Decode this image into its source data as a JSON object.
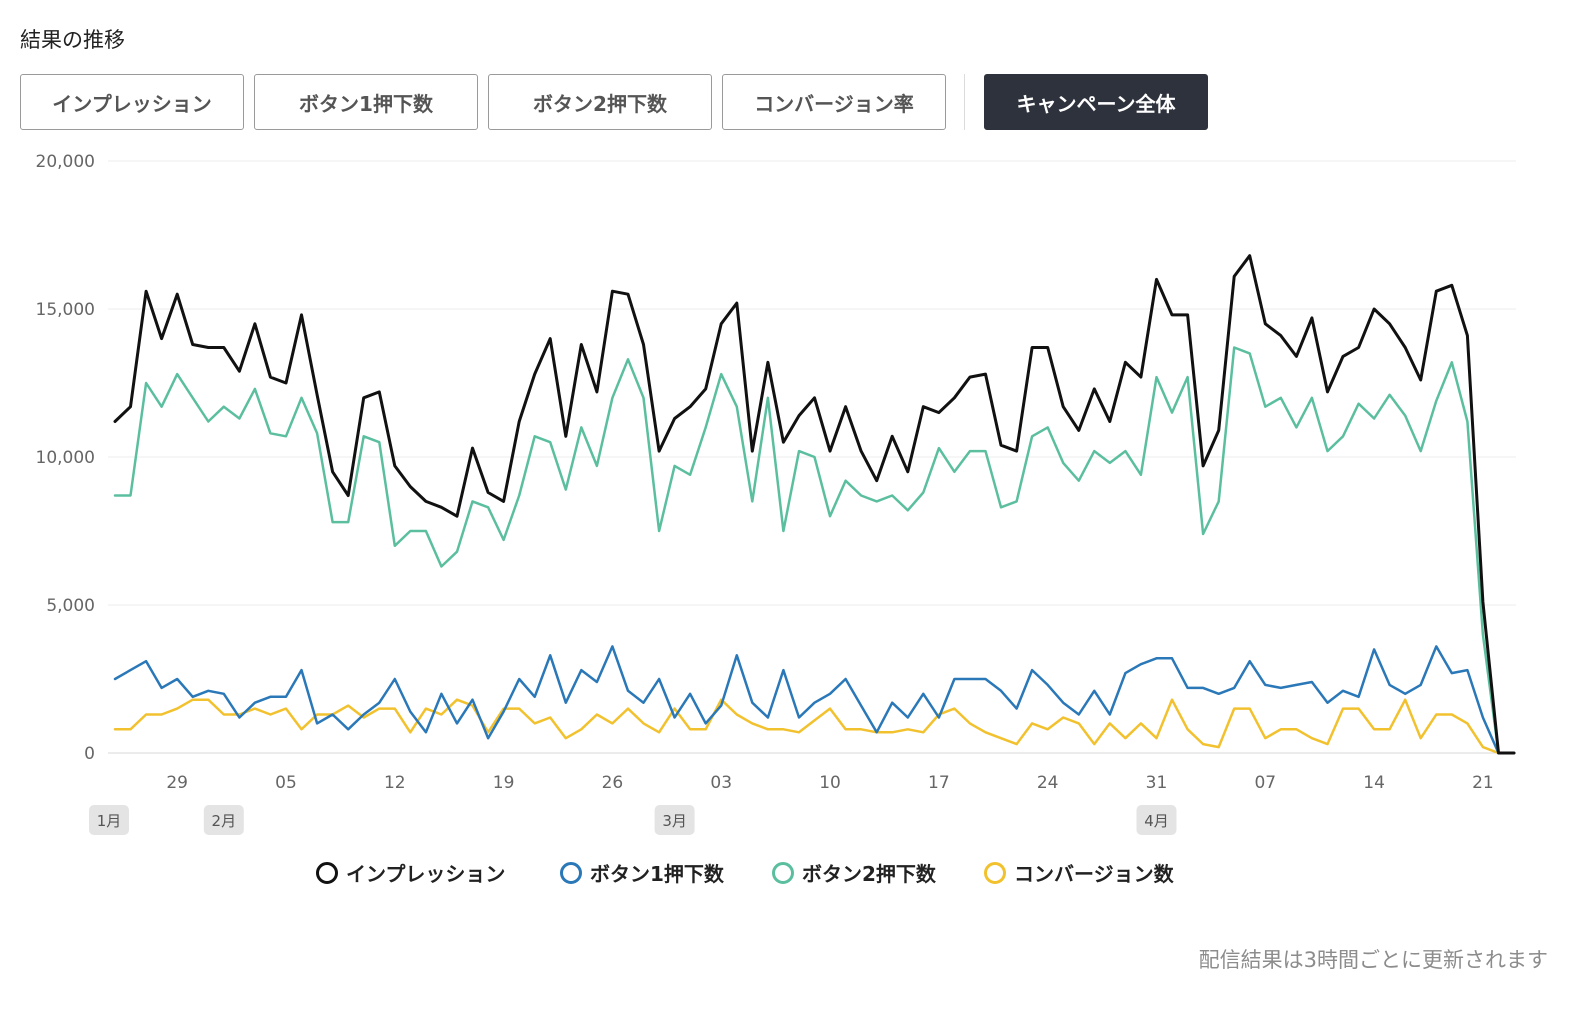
{
  "title": "結果の推移",
  "tabs": [
    {
      "label": "インプレッション",
      "active": false
    },
    {
      "label": "ボタン1押下数",
      "active": false
    },
    {
      "label": "ボタン2押下数",
      "active": false
    },
    {
      "label": "コンバージョン率",
      "active": false
    },
    {
      "label": "キャンペーン全体",
      "active": true
    }
  ],
  "footer_note": "配信結果は3時間ごとに更新されます",
  "chart_data": {
    "type": "line",
    "ylim": [
      0,
      20000
    ],
    "y_ticks": [
      "0",
      "5,000",
      "10,000",
      "15,000",
      "20,000"
    ],
    "y_tick_values": [
      0,
      5000,
      10000,
      15000,
      20000
    ],
    "x_tick_labels": [
      {
        "label": "29",
        "index": 4
      },
      {
        "label": "05",
        "index": 11
      },
      {
        "label": "12",
        "index": 18
      },
      {
        "label": "19",
        "index": 25
      },
      {
        "label": "26",
        "index": 32
      },
      {
        "label": "03",
        "index": 39
      },
      {
        "label": "10",
        "index": 46
      },
      {
        "label": "17",
        "index": 53
      },
      {
        "label": "24",
        "index": 60
      },
      {
        "label": "31",
        "index": 67
      },
      {
        "label": "07",
        "index": 74
      },
      {
        "label": "14",
        "index": 81
      },
      {
        "label": "21",
        "index": 88
      }
    ],
    "month_badges": [
      {
        "label": "1月",
        "index": 0
      },
      {
        "label": "2月",
        "index": 7
      },
      {
        "label": "3月",
        "index": 36
      },
      {
        "label": "4月",
        "index": 67
      }
    ],
    "grid": true,
    "legend_position": "bottom",
    "series": [
      {
        "name": "インプレッション",
        "color": "#111111",
        "values": [
          11200,
          11700,
          15600,
          14000,
          15500,
          13800,
          13700,
          13700,
          12900,
          14500,
          12700,
          12500,
          14800,
          12100,
          9500,
          8700,
          12000,
          12200,
          9700,
          9000,
          8500,
          8300,
          8000,
          10300,
          8800,
          8500,
          11200,
          12800,
          14000,
          10700,
          13800,
          12200,
          15600,
          15500,
          13800,
          10200,
          11300,
          11700,
          12300,
          14500,
          15200,
          10200,
          13200,
          10500,
          11400,
          12000,
          10200,
          11700,
          10200,
          9200,
          10700,
          9500,
          11700,
          11500,
          12000,
          12700,
          12800,
          10400,
          10200,
          13700,
          13700,
          11700,
          10900,
          12300,
          11200,
          13200,
          12700,
          16000,
          14800,
          14800,
          9700,
          10900,
          16100,
          16800,
          14500,
          14100,
          13400,
          14700,
          12200,
          13400,
          13700,
          15000,
          14500,
          13700,
          12600,
          15600,
          15800,
          14100,
          5100,
          0,
          0
        ]
      },
      {
        "name": "ボタン1押下数",
        "color": "#2a78b8",
        "values": [
          2500,
          2800,
          3100,
          2200,
          2500,
          1900,
          2100,
          2000,
          1200,
          1700,
          1900,
          1900,
          2800,
          1000,
          1300,
          800,
          1300,
          1700,
          2500,
          1400,
          700,
          2000,
          1000,
          1800,
          500,
          1400,
          2500,
          1900,
          3300,
          1700,
          2800,
          2400,
          3600,
          2100,
          1700,
          2500,
          1200,
          2000,
          1000,
          1600,
          3300,
          1700,
          1200,
          2800,
          1200,
          1700,
          2000,
          2500,
          1600,
          700,
          1700,
          1200,
          2000,
          1200,
          2500,
          2500,
          2500,
          2100,
          1500,
          2800,
          2300,
          1700,
          1300,
          2100,
          1300,
          2700,
          3000,
          3200,
          3200,
          2200,
          2200,
          2000,
          2200,
          3100,
          2300,
          2200,
          2300,
          2400,
          1700,
          2100,
          1900,
          3500,
          2300,
          2000,
          2300,
          3600,
          2700,
          2800,
          1200,
          0,
          0
        ]
      },
      {
        "name": "ボタン2押下数",
        "color": "#5bbf9f",
        "values": [
          8700,
          8700,
          12500,
          11700,
          12800,
          12000,
          11200,
          11700,
          11300,
          12300,
          10800,
          10700,
          12000,
          10800,
          7800,
          7800,
          10700,
          10500,
          7000,
          7500,
          7500,
          6300,
          6800,
          8500,
          8300,
          7200,
          8700,
          10700,
          10500,
          8900,
          11000,
          9700,
          12000,
          13300,
          12000,
          7500,
          9700,
          9400,
          11000,
          12800,
          11700,
          8500,
          12000,
          7500,
          10200,
          10000,
          8000,
          9200,
          8700,
          8500,
          8700,
          8200,
          8800,
          10300,
          9500,
          10200,
          10200,
          8300,
          8500,
          10700,
          11000,
          9800,
          9200,
          10200,
          9800,
          10200,
          9400,
          12700,
          11500,
          12700,
          7400,
          8500,
          13700,
          13500,
          11700,
          12000,
          11000,
          12000,
          10200,
          10700,
          11800,
          11300,
          12100,
          11400,
          10200,
          11900,
          13200,
          11200,
          4000,
          0,
          0
        ]
      },
      {
        "name": "コンバージョン数",
        "color": "#f2c12e",
        "values": [
          800,
          800,
          1300,
          1300,
          1500,
          1800,
          1800,
          1300,
          1300,
          1500,
          1300,
          1500,
          800,
          1300,
          1300,
          1600,
          1200,
          1500,
          1500,
          700,
          1500,
          1300,
          1800,
          1600,
          700,
          1500,
          1500,
          1000,
          1200,
          500,
          800,
          1300,
          1000,
          1500,
          1000,
          700,
          1500,
          800,
          800,
          1800,
          1300,
          1000,
          800,
          800,
          700,
          1100,
          1500,
          800,
          800,
          700,
          700,
          800,
          700,
          1300,
          1500,
          1000,
          700,
          500,
          300,
          1000,
          800,
          1200,
          1000,
          300,
          1000,
          500,
          1000,
          500,
          1800,
          800,
          300,
          200,
          1500,
          1500,
          500,
          800,
          800,
          500,
          300,
          1500,
          1500,
          800,
          800,
          1800,
          500,
          1300,
          1300,
          1000,
          200,
          0,
          0
        ]
      }
    ]
  }
}
